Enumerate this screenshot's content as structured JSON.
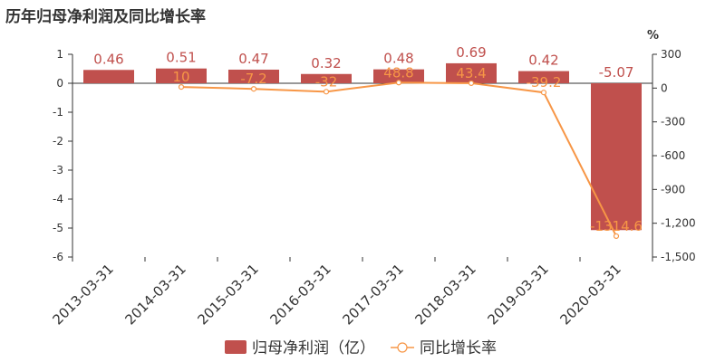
{
  "title": "历年归母净利润及同比增长率",
  "right_unit": "%",
  "colors": {
    "bar": "#c0504d",
    "line": "#f79646",
    "axis": "#333333"
  },
  "chart_data": {
    "type": "bar",
    "categories": [
      "2013-03-31",
      "2014-03-31",
      "2015-03-31",
      "2016-03-31",
      "2017-03-31",
      "2018-03-31",
      "2019-03-31",
      "2020-03-31"
    ],
    "series": [
      {
        "name": "归母净利润（亿）",
        "type": "bar",
        "axis": "left",
        "values": [
          0.46,
          0.51,
          0.47,
          0.32,
          0.48,
          0.69,
          0.42,
          -5.07
        ],
        "labels": [
          "0.46",
          "0.51",
          "0.47",
          "0.32",
          "0.48",
          "0.69",
          "0.42",
          "-5.07"
        ]
      },
      {
        "name": "同比增长率",
        "type": "line",
        "axis": "right",
        "values": [
          null,
          10,
          -7.2,
          -32,
          48.8,
          43.4,
          -39.2,
          -1314.6
        ],
        "labels": [
          "",
          "10",
          "-7.2",
          "-32",
          "48.8",
          "43.4",
          "-39.2",
          "-1314.6"
        ]
      }
    ],
    "left_axis": {
      "ylim": [
        -6,
        1
      ],
      "ticks": [
        1,
        0,
        -1,
        -2,
        -3,
        -4,
        -5,
        -6
      ],
      "tick_labels": [
        "1",
        "0",
        "-1",
        "-2",
        "-3",
        "-4",
        "-5",
        "-6"
      ]
    },
    "right_axis": {
      "ylim": [
        -1500,
        300
      ],
      "ticks": [
        300,
        0,
        -300,
        -600,
        -900,
        -1200,
        -1500
      ],
      "tick_labels": [
        "300",
        "0",
        "-300",
        "-600",
        "-900",
        "-1,200",
        "-1,500"
      ]
    },
    "legend_position": "bottom-center"
  }
}
